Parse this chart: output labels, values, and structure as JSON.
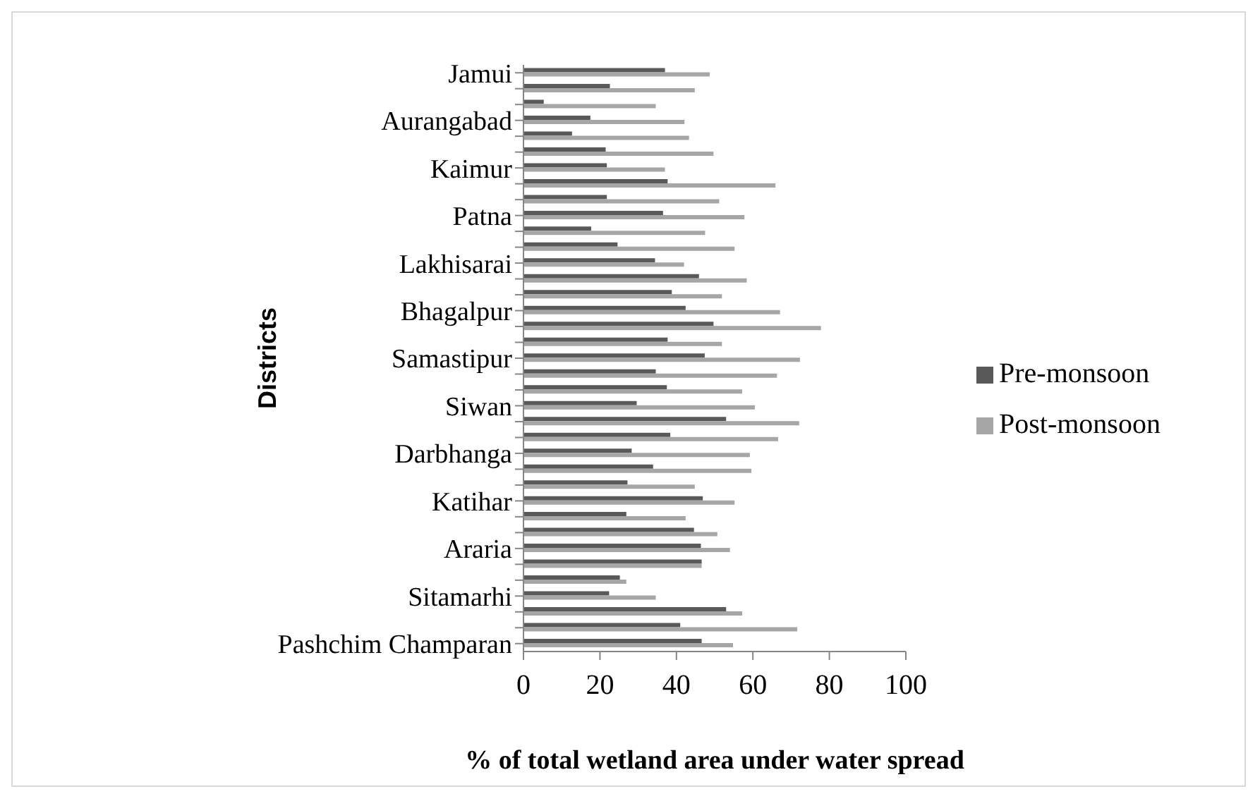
{
  "chart_data": {
    "type": "bar",
    "orientation": "horizontal",
    "xlabel": "% of total wetland area under water spread",
    "ylabel": "Districts",
    "categories": [
      "Jamui",
      null,
      null,
      "Aurangabad",
      null,
      null,
      "Kaimur",
      null,
      null,
      "Patna",
      null,
      null,
      "Lakhisarai",
      null,
      null,
      "Bhagalpur",
      null,
      null,
      "Samastipur",
      null,
      null,
      "Siwan",
      null,
      null,
      "Darbhanga",
      null,
      null,
      "Katihar",
      null,
      null,
      "Araria",
      null,
      null,
      "Sitamarhi",
      null,
      null,
      "Pashchim Champaran"
    ],
    "series": [
      {
        "name": "Pre-monsoon",
        "color": "#595959",
        "values": [
          37,
          22.6,
          5.3,
          17.5,
          12.7,
          21.5,
          21.8,
          37.7,
          21.8,
          36.5,
          17.7,
          24.6,
          34.4,
          45.9,
          38.8,
          42.4,
          49.7,
          37.7,
          47.4,
          34.6,
          37.5,
          29.6,
          53,
          38.4,
          28.3,
          33.9,
          27.2,
          46.9,
          26.9,
          44.6,
          46.4,
          46.6,
          25.2,
          22.4,
          53,
          41,
          46.6
        ]
      },
      {
        "name": "Post-monsoon",
        "color": "#a6a6a6",
        "values": [
          48.7,
          44.8,
          34.6,
          42.1,
          43.3,
          49.7,
          37,
          65.9,
          51.2,
          57.8,
          47.5,
          55.2,
          42,
          58.4,
          51.9,
          67.1,
          77.8,
          51.9,
          72.3,
          66.3,
          57.2,
          60.5,
          72.1,
          66.6,
          59.2,
          59.6,
          44.8,
          55.2,
          42.4,
          50.7,
          54,
          46.6,
          26.9,
          34.6,
          57.2,
          71.6,
          54.8
        ]
      }
    ],
    "xlim": [
      0,
      100
    ],
    "xticks": [
      0,
      20,
      40,
      60,
      80,
      100
    ],
    "legend": "right"
  }
}
